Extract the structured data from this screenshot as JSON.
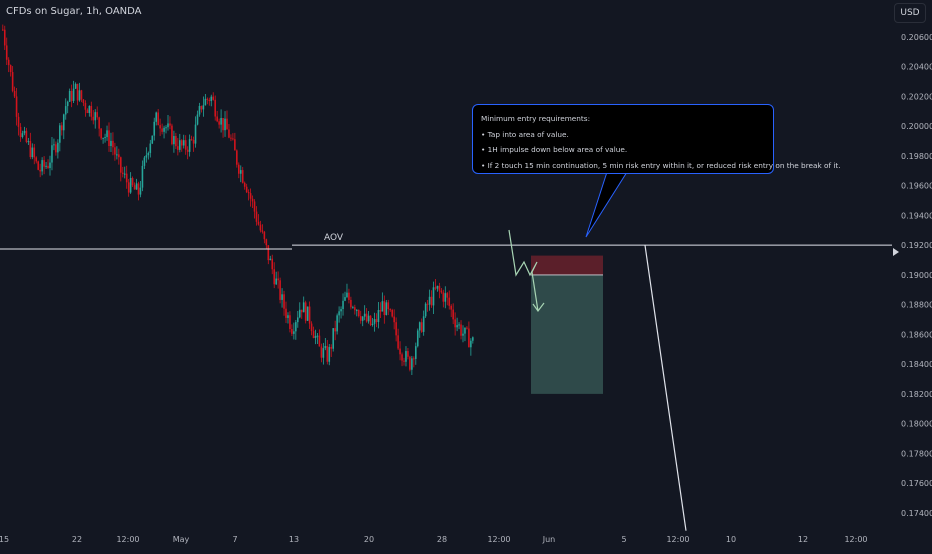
{
  "header": {
    "title": "CFDs on Sugar, 1h, OANDA",
    "currency": "USD"
  },
  "price_axis": {
    "labels": [
      "0.20600",
      "0.20400",
      "0.20200",
      "0.20000",
      "0.19800",
      "0.19600",
      "0.19400",
      "0.19200",
      "0.19000",
      "0.18800",
      "0.18600",
      "0.18400",
      "0.18200",
      "0.18000",
      "0.17800",
      "0.17600",
      "0.17400"
    ]
  },
  "time_axis": {
    "labels": [
      "15",
      "22",
      "12:00",
      "May",
      "7",
      "13",
      "20",
      "28",
      "12:00",
      "Jun",
      "5",
      "12:00",
      "10",
      "12",
      "12:00"
    ]
  },
  "annotations": {
    "aov_label": "AOV",
    "callout": {
      "title": "Minimum entry requirements:",
      "items": [
        "• Tap into area of value.",
        "• 1H impulse down below area of value.",
        "• If 2 touch 15 min continuation, 5 min risk entry within it, or reduced risk entry on the break of it."
      ]
    }
  },
  "colors": {
    "background": "#131722",
    "up": "#26a69a",
    "down": "#ef5350",
    "red_candle": "#d3141d",
    "aov_line": "#e0e3eb",
    "callout_border": "#2962ff",
    "stop_zone": "#5b1f2a",
    "target_zone": "#2f4a4a",
    "projection": "#a8d5b4"
  },
  "chart_data": {
    "type": "candlestick",
    "title": "CFDs on Sugar, 1h, OANDA",
    "y_scale": "linear",
    "ylim": [
      0.1735,
      0.2073
    ],
    "grid": false,
    "x_tick_labels": [
      "15",
      "22",
      "12:00",
      "May",
      "7",
      "13",
      "20",
      "28",
      "12:00",
      "Jun",
      "5",
      "12:00",
      "10",
      "12",
      "12:00"
    ],
    "y_tick_labels": [
      "0.20600",
      "0.20400",
      "0.20200",
      "0.20000",
      "0.19800",
      "0.19600",
      "0.19400",
      "0.19200",
      "0.19000",
      "0.18800",
      "0.18600",
      "0.18400",
      "0.18200",
      "0.18000",
      "0.17800",
      "0.17600",
      "0.17400"
    ],
    "price_path": [
      0.2065,
      0.203,
      0.1995,
      0.1985,
      0.197,
      0.1975,
      0.199,
      0.2015,
      0.2025,
      0.2015,
      0.201,
      0.1995,
      0.199,
      0.197,
      0.196,
      0.1955,
      0.1985,
      0.2005,
      0.2,
      0.199,
      0.1985,
      0.199,
      0.2015,
      0.202,
      0.2005,
      0.1995,
      0.1975,
      0.196,
      0.194,
      0.192,
      0.19,
      0.188,
      0.1865,
      0.188,
      0.187,
      0.185,
      0.1845,
      0.187,
      0.1885,
      0.188,
      0.187,
      0.1865,
      0.188,
      0.187,
      0.185,
      0.184,
      0.186,
      0.188,
      0.189,
      0.1885,
      0.187,
      0.186,
      0.1855
    ],
    "aov_level": 0.192,
    "short_setup": {
      "entry": 0.19,
      "stop": 0.1913,
      "target": 0.182
    },
    "projection_end": 0.1728
  }
}
